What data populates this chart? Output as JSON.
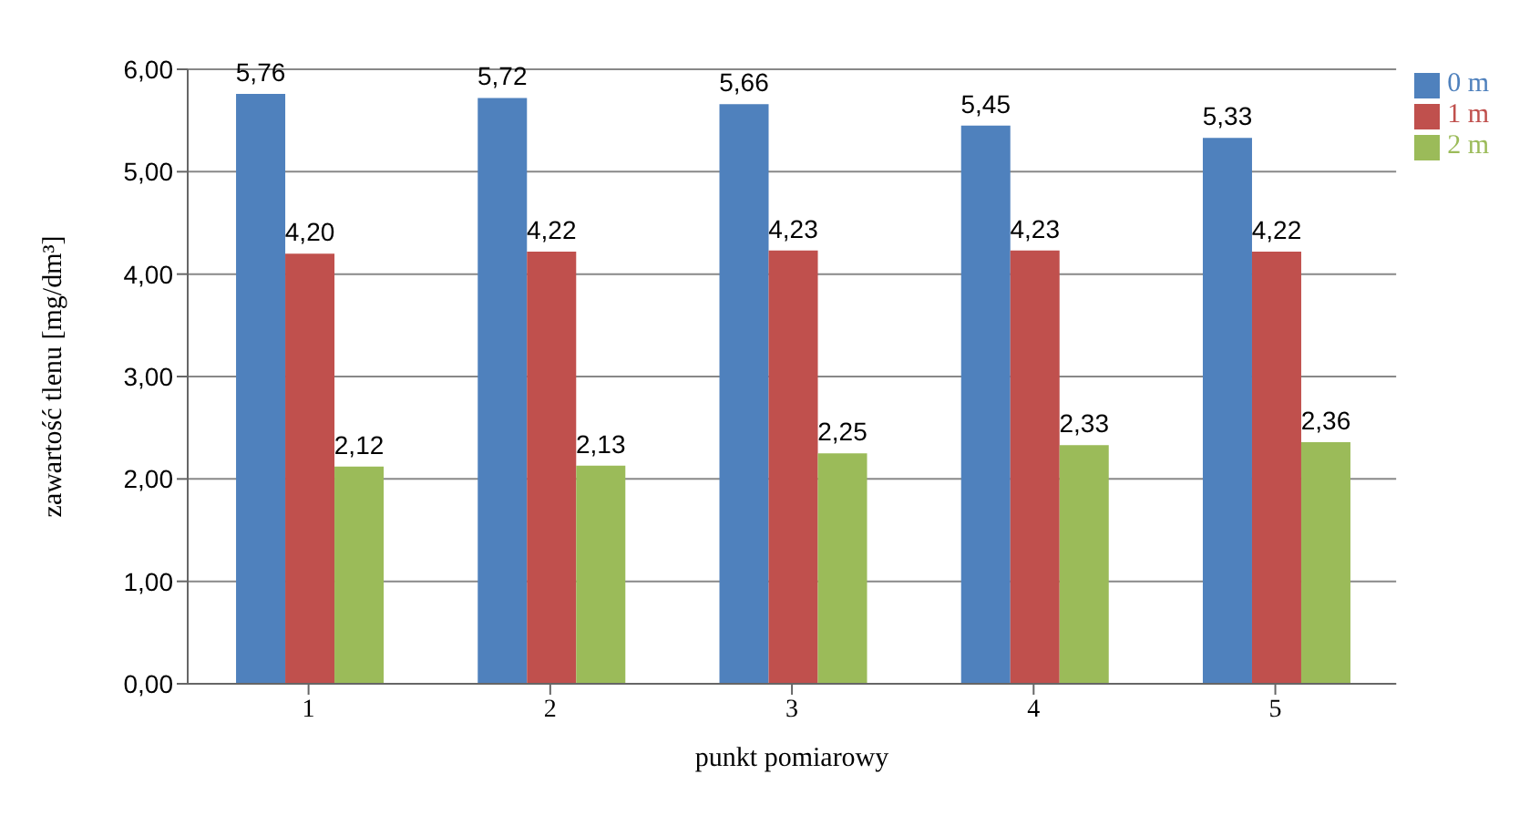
{
  "chart_data": {
    "type": "bar",
    "xlabel": "punkt pomiarowy",
    "ylabel": "zawartość tlenu [mg/dm³]",
    "categories": [
      "1",
      "2",
      "3",
      "4",
      "5"
    ],
    "series": [
      {
        "name": "0 m",
        "color": "#4f81bd",
        "values": [
          5.76,
          5.72,
          5.66,
          5.45,
          5.33
        ],
        "value_labels": [
          "5,76",
          "5,72",
          "5,66",
          "5,45",
          "5,33"
        ]
      },
      {
        "name": "1 m",
        "color": "#c0504d",
        "values": [
          4.2,
          4.22,
          4.23,
          4.23,
          4.22
        ],
        "value_labels": [
          "4,20",
          "4,22",
          "4,23",
          "4,23",
          "4,22"
        ]
      },
      {
        "name": "2 m",
        "color": "#9bbb59",
        "values": [
          2.12,
          2.13,
          2.25,
          2.33,
          2.36
        ],
        "value_labels": [
          "2,12",
          "2,13",
          "2,25",
          "2,33",
          "2,36"
        ]
      }
    ],
    "ylim": [
      0,
      6
    ],
    "yticks": [
      {
        "value": 0,
        "label": "0,00"
      },
      {
        "value": 1,
        "label": "1,00"
      },
      {
        "value": 2,
        "label": "2,00"
      },
      {
        "value": 3,
        "label": "3,00"
      },
      {
        "value": 4,
        "label": "4,00"
      },
      {
        "value": 5,
        "label": "5,00"
      },
      {
        "value": 6,
        "label": "6,00"
      }
    ],
    "grid": "y",
    "legend": "top right"
  }
}
